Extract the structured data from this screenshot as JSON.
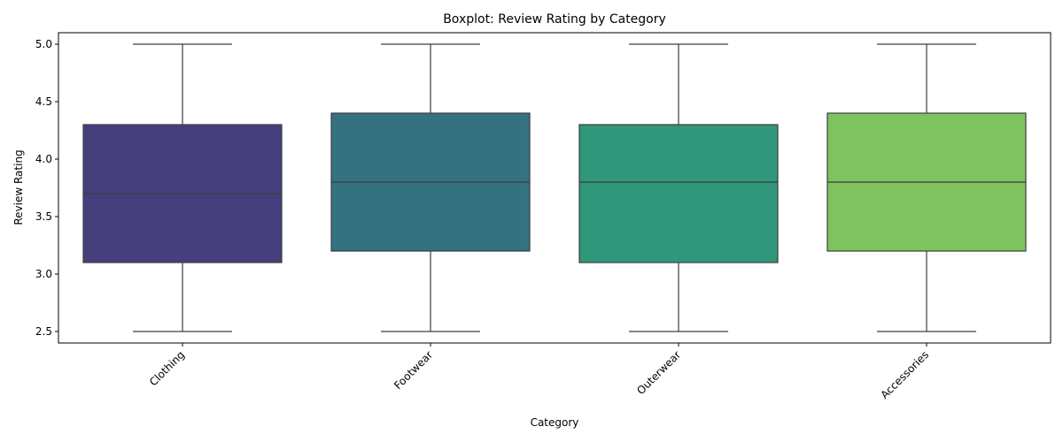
{
  "chart_data": {
    "type": "boxplot",
    "title": "Boxplot: Review Rating by Category",
    "xlabel": "Category",
    "ylabel": "Review Rating",
    "ylim": [
      2.4,
      5.1
    ],
    "yticks": [
      2.5,
      3.0,
      3.5,
      4.0,
      4.5,
      5.0
    ],
    "ytick_labels": [
      "2.5",
      "3.0",
      "3.5",
      "4.0",
      "4.5",
      "5.0"
    ],
    "grid": false,
    "legend": "none",
    "categories": [
      "Clothing",
      "Footwear",
      "Outerwear",
      "Accessories"
    ],
    "boxes": [
      {
        "category": "Clothing",
        "min": 2.5,
        "q1": 3.1,
        "median": 3.7,
        "q3": 4.3,
        "max": 5.0,
        "color": "#463f7d"
      },
      {
        "category": "Footwear",
        "min": 2.5,
        "q1": 3.2,
        "median": 3.8,
        "q3": 4.4,
        "max": 5.0,
        "color": "#347282"
      },
      {
        "category": "Outerwear",
        "min": 2.5,
        "q1": 3.1,
        "median": 3.8,
        "q3": 4.3,
        "max": 5.0,
        "color": "#30977a"
      },
      {
        "category": "Accessories",
        "min": 2.5,
        "q1": 3.2,
        "median": 3.8,
        "q3": 4.4,
        "max": 5.0,
        "color": "#7fc360"
      }
    ]
  }
}
